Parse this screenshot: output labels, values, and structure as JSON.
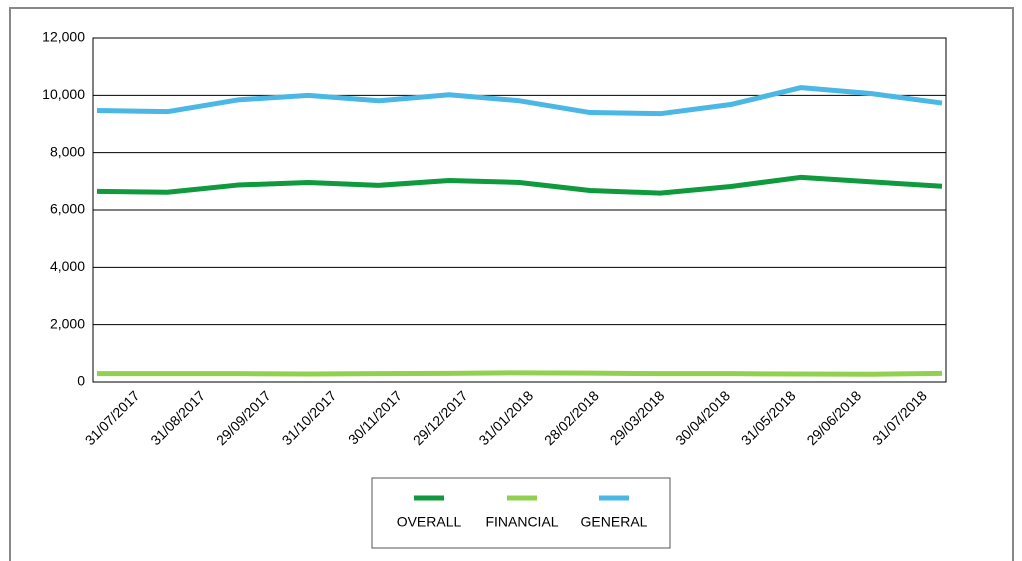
{
  "chart_data": {
    "type": "line",
    "categories": [
      "31/07/2017",
      "31/08/2017",
      "29/09/2017",
      "31/10/2017",
      "30/11/2017",
      "29/12/2017",
      "31/01/2018",
      "28/02/2018",
      "29/03/2018",
      "30/04/2018",
      "31/05/2018",
      "29/06/2018",
      "31/07/2018"
    ],
    "series": [
      {
        "name": "OVERALL",
        "color": "#109a3e",
        "values": [
          6650,
          6620,
          6870,
          6960,
          6860,
          7030,
          6960,
          6680,
          6590,
          6820,
          7140,
          6980,
          6830
        ]
      },
      {
        "name": "FINANCIAL",
        "color": "#92d050",
        "values": [
          290,
          290,
          290,
          280,
          290,
          300,
          320,
          310,
          290,
          290,
          280,
          270,
          300
        ]
      },
      {
        "name": "GENERAL",
        "color": "#4ab7e5",
        "values": [
          9470,
          9430,
          9840,
          10000,
          9810,
          10020,
          9810,
          9400,
          9360,
          9680,
          10270,
          10060,
          9730
        ]
      }
    ],
    "ylim": [
      0,
      12000
    ],
    "yticks": [
      0,
      {
        "value": 2000,
        "label": "2,000"
      },
      {
        "value": 4000,
        "label": "4,000"
      },
      {
        "value": 6000,
        "label": "6,000"
      },
      {
        "value": 8000,
        "label": "8,000"
      },
      {
        "value": 10000,
        "label": "10,000"
      },
      {
        "value": 12000,
        "label": "12,000"
      }
    ],
    "grid": true,
    "legend": "bottom"
  }
}
